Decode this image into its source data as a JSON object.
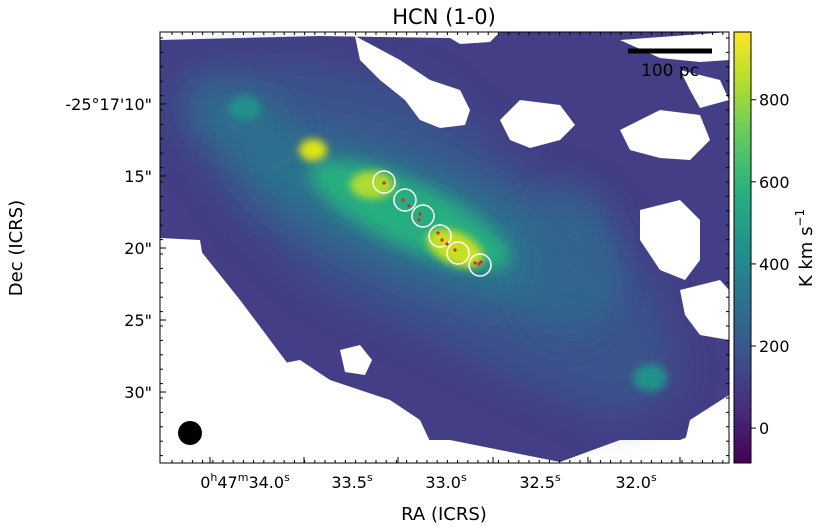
{
  "chart_data": {
    "type": "heatmap",
    "title": "HCN (1-0)",
    "xlabel": "RA (ICRS)",
    "ylabel": "Dec (ICRS)",
    "x_ticks": [
      {
        "h": "0",
        "m": "47",
        "s": "34.0",
        "pre": "0",
        "hs": "h",
        "ms": "m",
        "ss": "s",
        "label": "0h47m34.0s"
      },
      {
        "pre": "33.5",
        "ss": "s",
        "label": "33.5s"
      },
      {
        "pre": "33.0",
        "ss": "s",
        "label": "33.0s"
      },
      {
        "pre": "32.5",
        "ss": "s",
        "label": "32.5s"
      },
      {
        "pre": "32.0",
        "ss": "s",
        "label": "32.0s"
      }
    ],
    "y_ticks": [
      "-25°17'10\"",
      "15\"",
      "20\"",
      "25\"",
      "30\""
    ],
    "colorbar": {
      "label": "K km s",
      "label_exp": "−1",
      "ticks": [
        "800",
        "600",
        "400",
        "200",
        "0"
      ],
      "range": [
        -85,
        965
      ],
      "colormap": "viridis"
    },
    "scalebar_label": "100 pc",
    "beam": "filled circle, lower-left",
    "markers": {
      "circle_color": "#ffffff",
      "point_color": "#d62728",
      "count": 6
    }
  }
}
